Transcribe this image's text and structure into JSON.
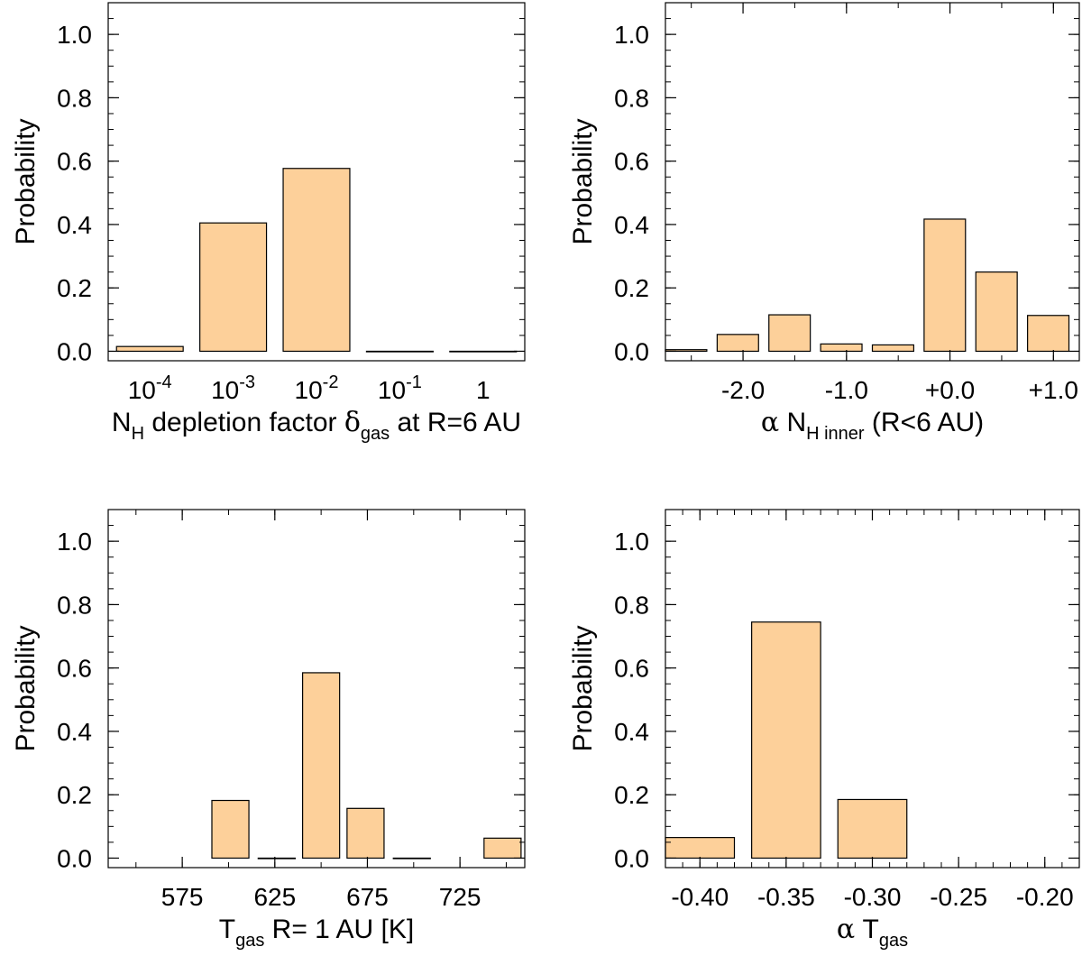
{
  "chart_data": [
    {
      "type": "bar",
      "ylabel": "Probability",
      "xlabel_parts": [
        {
          "t": "N"
        },
        {
          "t": "H",
          "sub": true
        },
        {
          "t": " depletion factor "
        },
        {
          "t": "δ",
          "greek": true
        },
        {
          "t": "gas",
          "sub": true
        },
        {
          "t": " at R=6 AU"
        }
      ],
      "xlim": [
        0,
        5
      ],
      "ylim": [
        -0.03,
        1.1
      ],
      "yticks": [
        0.0,
        0.2,
        0.4,
        0.6,
        0.8,
        1.0
      ],
      "yticklabels": [
        "0.0",
        "0.2",
        "0.4",
        "0.6",
        "0.8",
        "1.0"
      ],
      "yminor_step": 0.05,
      "xtick_labels": [
        {
          "base": "10",
          "exp": "-4",
          "x": 0.5
        },
        {
          "base": "10",
          "exp": "-3",
          "x": 1.5
        },
        {
          "base": "10",
          "exp": "-2",
          "x": 2.5
        },
        {
          "base": "10",
          "exp": "-1",
          "x": 3.5
        },
        {
          "base": "1",
          "exp": "",
          "x": 4.5
        }
      ],
      "categories": [
        "10^-4",
        "10^-3",
        "10^-2",
        "10^-1",
        "1"
      ],
      "bars": [
        {
          "x0": 0.1,
          "x1": 0.9,
          "value": 0.015
        },
        {
          "x0": 1.1,
          "x1": 1.9,
          "value": 0.405
        },
        {
          "x0": 2.1,
          "x1": 2.9,
          "value": 0.577
        },
        {
          "x0": 3.1,
          "x1": 3.9,
          "value": 0.0
        },
        {
          "x0": 4.1,
          "x1": 4.9,
          "value": 0.0
        }
      ]
    },
    {
      "type": "bar",
      "ylabel": "Probability",
      "xlabel_parts": [
        {
          "t": "α",
          "greek": true
        },
        {
          "t": " N"
        },
        {
          "t": "H inner",
          "sub": true
        },
        {
          "t": " (R<6 AU)"
        }
      ],
      "xlim": [
        -2.75,
        1.25
      ],
      "ylim": [
        -0.03,
        1.1
      ],
      "yticks": [
        0.0,
        0.2,
        0.4,
        0.6,
        0.8,
        1.0
      ],
      "yticklabels": [
        "0.0",
        "0.2",
        "0.4",
        "0.6",
        "0.8",
        "1.0"
      ],
      "yminor_step": 0.05,
      "xticks": [
        -2.0,
        -1.0,
        0.0,
        1.0
      ],
      "xticklabels": [
        "-2.0",
        "-1.0",
        "+0.0",
        "+1.0"
      ],
      "xminor_step": 0.5,
      "bars": [
        {
          "x0": -2.75,
          "x1": -2.35,
          "value": 0.005
        },
        {
          "x0": -2.25,
          "x1": -1.85,
          "value": 0.053
        },
        {
          "x0": -1.75,
          "x1": -1.35,
          "value": 0.115
        },
        {
          "x0": -1.25,
          "x1": -0.85,
          "value": 0.023
        },
        {
          "x0": -0.75,
          "x1": -0.35,
          "value": 0.02
        },
        {
          "x0": -0.25,
          "x1": 0.15,
          "value": 0.417
        },
        {
          "x0": 0.25,
          "x1": 0.65,
          "value": 0.25
        },
        {
          "x0": 0.75,
          "x1": 1.15,
          "value": 0.113
        }
      ]
    },
    {
      "type": "bar",
      "ylabel": "Probability",
      "xlabel_parts": [
        {
          "t": "T"
        },
        {
          "t": "gas",
          "sub": true
        },
        {
          "t": " R= 1 AU [K]"
        }
      ],
      "xlim": [
        535,
        760
      ],
      "ylim": [
        -0.03,
        1.1
      ],
      "yticks": [
        0.0,
        0.2,
        0.4,
        0.6,
        0.8,
        1.0
      ],
      "yticklabels": [
        "0.0",
        "0.2",
        "0.4",
        "0.6",
        "0.8",
        "1.0"
      ],
      "yminor_step": 0.05,
      "xticks": [
        575,
        625,
        675,
        725
      ],
      "xticklabels": [
        "575",
        "625",
        "675",
        "725"
      ],
      "xminor_step": 25,
      "bars": [
        {
          "x0": 591,
          "x1": 611,
          "value": 0.182
        },
        {
          "x0": 616,
          "x1": 636,
          "value": 0.0
        },
        {
          "x0": 640,
          "x1": 660,
          "value": 0.585
        },
        {
          "x0": 664,
          "x1": 684,
          "value": 0.157
        },
        {
          "x0": 689,
          "x1": 709,
          "value": 0.0
        },
        {
          "x0": 738,
          "x1": 758,
          "value": 0.063
        }
      ]
    },
    {
      "type": "bar",
      "ylabel": "Probability",
      "xlabel_parts": [
        {
          "t": "α",
          "greek": true
        },
        {
          "t": " T"
        },
        {
          "t": "gas",
          "sub": true
        }
      ],
      "xlim": [
        -0.42,
        -0.18
      ],
      "ylim": [
        -0.03,
        1.1
      ],
      "yticks": [
        0.0,
        0.2,
        0.4,
        0.6,
        0.8,
        1.0
      ],
      "yticklabels": [
        "0.0",
        "0.2",
        "0.4",
        "0.6",
        "0.8",
        "1.0"
      ],
      "yminor_step": 0.05,
      "xticks": [
        -0.4,
        -0.35,
        -0.3,
        -0.25,
        -0.2
      ],
      "xticklabels": [
        "-0.40",
        "-0.35",
        "-0.30",
        "-0.25",
        "-0.20"
      ],
      "xminor_step": 0.01,
      "bars": [
        {
          "x0": -0.42,
          "x1": -0.38,
          "value": 0.065
        },
        {
          "x0": -0.37,
          "x1": -0.33,
          "value": 0.745
        },
        {
          "x0": -0.32,
          "x1": -0.28,
          "value": 0.185
        }
      ]
    }
  ]
}
